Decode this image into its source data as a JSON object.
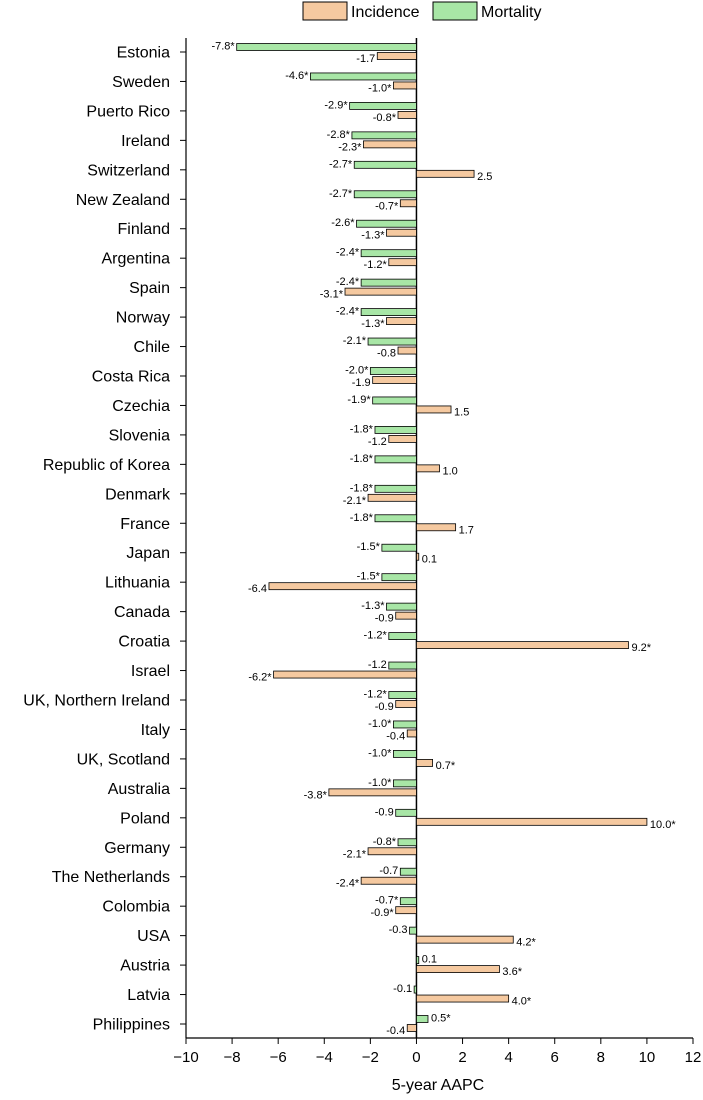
{
  "chart_data": {
    "type": "bar",
    "orientation": "horizontal",
    "xlabel": "5-year AAPC",
    "xlim": [
      -10,
      12
    ],
    "xticks": [
      -10,
      -8,
      -6,
      -4,
      -2,
      0,
      2,
      4,
      6,
      8,
      10,
      12
    ],
    "grid": false,
    "legend_position": "top",
    "colors": {
      "Incidence": "#f5c9a0",
      "Mortality": "#a8e6a6"
    },
    "categories": [
      "Estonia",
      "Sweden",
      "Puerto Rico",
      "Ireland",
      "Switzerland",
      "New Zealand",
      "Finland",
      "Argentina",
      "Spain",
      "Norway",
      "Chile",
      "Costa Rica",
      "Czechia",
      "Slovenia",
      "Republic of Korea",
      "Denmark",
      "France",
      "Japan",
      "Lithuania",
      "Canada",
      "Croatia",
      "Israel",
      "UK, Northern Ireland",
      "Italy",
      "UK, Scotland",
      "Australia",
      "Poland",
      "Germany",
      "The Netherlands",
      "Colombia",
      "USA",
      "Austria",
      "Latvia",
      "Philippines"
    ],
    "series": [
      {
        "name": "Incidence",
        "values": [
          -1.7,
          -1.0,
          -0.8,
          -2.3,
          2.5,
          -0.7,
          -1.3,
          -1.2,
          -3.1,
          -1.3,
          -0.8,
          -1.9,
          1.5,
          -1.2,
          1.0,
          -2.1,
          1.7,
          0.1,
          -6.4,
          -0.9,
          9.2,
          -6.2,
          -0.9,
          -0.4,
          0.7,
          -3.8,
          10.0,
          -2.1,
          -2.4,
          -0.9,
          4.2,
          3.6,
          4.0,
          -0.4
        ],
        "labels": [
          "-1.7",
          "-1.0*",
          "-0.8*",
          "-2.3*",
          "2.5",
          "-0.7*",
          "-1.3*",
          "-1.2*",
          "-3.1*",
          "-1.3*",
          "-0.8",
          "-1.9",
          "1.5",
          "-1.2",
          "1.0",
          "-2.1*",
          "1.7",
          "0.1",
          "-6.4",
          "-0.9",
          "9.2*",
          "-6.2*",
          "-0.9",
          "-0.4",
          "0.7*",
          "-3.8*",
          "10.0*",
          "-2.1*",
          "-2.4*",
          "-0.9*",
          "4.2*",
          "3.6*",
          "4.0*",
          "-0.4"
        ]
      },
      {
        "name": "Mortality",
        "values": [
          -7.8,
          -4.6,
          -2.9,
          -2.8,
          -2.7,
          -2.7,
          -2.6,
          -2.4,
          -2.4,
          -2.4,
          -2.1,
          -2.0,
          -1.9,
          -1.8,
          -1.8,
          -1.8,
          -1.8,
          -1.5,
          -1.5,
          -1.3,
          -1.2,
          -1.2,
          -1.2,
          -1.0,
          -1.0,
          -1.0,
          -0.9,
          -0.8,
          -0.7,
          -0.7,
          -0.3,
          0.1,
          -0.1,
          0.5
        ],
        "labels": [
          "-7.8*",
          "-4.6*",
          "-2.9*",
          "-2.8*",
          "-2.7*",
          "-2.7*",
          "-2.6*",
          "-2.4*",
          "-2.4*",
          "-2.4*",
          "-2.1*",
          "-2.0*",
          "-1.9*",
          "-1.8*",
          "-1.8*",
          "-1.8*",
          "-1.8*",
          "-1.5*",
          "-1.5*",
          "-1.3*",
          "-1.2*",
          "-1.2",
          "-1.2*",
          "-1.0*",
          "-1.0*",
          "-1.0*",
          "-0.9",
          "-0.8*",
          "-0.7",
          "-0.7*",
          "-0.3",
          "0.1",
          "-0.1",
          "0.5*"
        ]
      }
    ]
  }
}
